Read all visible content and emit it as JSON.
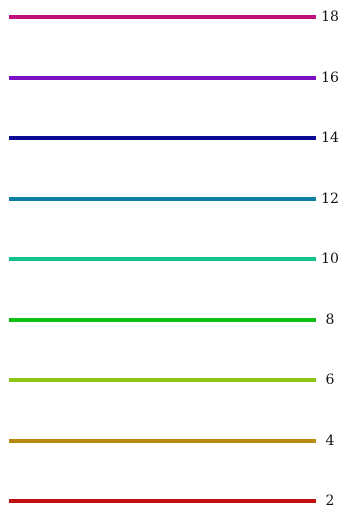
{
  "legend": {
    "items": [
      {
        "label": "18",
        "color": "#c0117a"
      },
      {
        "label": "16",
        "color": "#7a10c2"
      },
      {
        "label": "14",
        "color": "#0a0a96"
      },
      {
        "label": "12",
        "color": "#0d7fa2"
      },
      {
        "label": "10",
        "color": "#12c28c"
      },
      {
        "label": "8",
        "color": "#10c010"
      },
      {
        "label": "6",
        "color": "#8cc414"
      },
      {
        "label": "4",
        "color": "#b88a12"
      },
      {
        "label": "2",
        "color": "#c0100e"
      }
    ]
  }
}
